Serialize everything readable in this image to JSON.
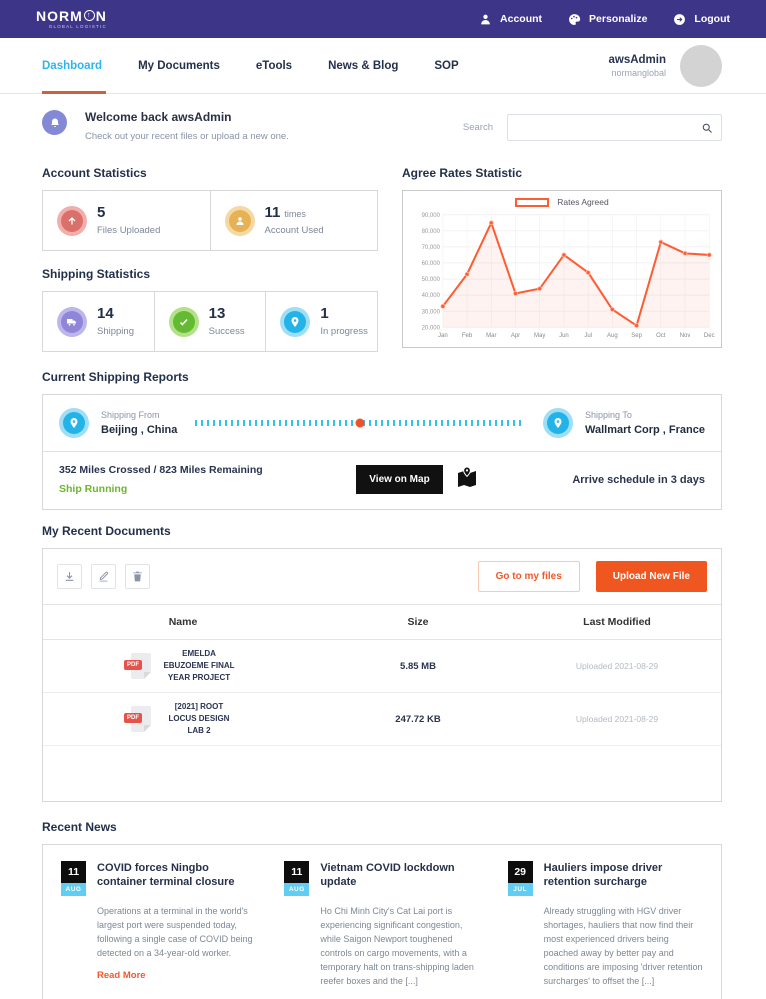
{
  "colors": {
    "navbar": "#3d3588",
    "accent_orange": "#f0592b",
    "active_tab_cyan": "#2eb5ef",
    "status_green": "#6cb52d",
    "chart_line": "#ff5c33"
  },
  "navbar": {
    "logo_part1": "NORM",
    "logo_part2": "N",
    "logo_a_glyph": "↑",
    "logo_subtitle": "GLOBAL LOGISTIC",
    "items": [
      {
        "label": "Account"
      },
      {
        "label": "Personalize"
      },
      {
        "label": "Logout"
      }
    ]
  },
  "tabs": [
    {
      "label": "Dashboard",
      "active": true
    },
    {
      "label": "My Documents",
      "active": false
    },
    {
      "label": "eTools",
      "active": false
    },
    {
      "label": "News & Blog",
      "active": false
    },
    {
      "label": "SOP",
      "active": false
    }
  ],
  "user": {
    "name": "awsAdmin",
    "org": "normanglobal"
  },
  "welcome": {
    "title": "Welcome back awsAdmin",
    "subtitle": "Check out your recent files or upload a new one."
  },
  "search": {
    "label": "Search",
    "value": ""
  },
  "account_stats": {
    "heading": "Account Statistics",
    "cards": [
      {
        "value": "5",
        "suffix": "",
        "label": "Files Uploaded"
      },
      {
        "value": "11",
        "suffix": "times",
        "label": "Account Used"
      }
    ]
  },
  "shipping_stats": {
    "heading": "Shipping Statistics",
    "cards": [
      {
        "value": "14",
        "label": "Shipping"
      },
      {
        "value": "13",
        "label": "Success"
      },
      {
        "value": "1",
        "label": "In progress"
      }
    ]
  },
  "chart": {
    "heading": "Agree Rates Statistic"
  },
  "chart_data": {
    "type": "line",
    "title": "Agree Rates Statistic",
    "x": [
      "Jan",
      "Feb",
      "Mar",
      "Apr",
      "May",
      "Jun",
      "Jul",
      "Aug",
      "Sep",
      "Oct",
      "Nov",
      "Dec"
    ],
    "series": [
      {
        "name": "Rates Agreed",
        "values": [
          33000,
          53000,
          85000,
          41000,
          44000,
          65000,
          54000,
          31000,
          21000,
          73000,
          66000,
          65000
        ]
      }
    ],
    "ylim": [
      20000,
      90000
    ],
    "ytick_step": 10000,
    "grid": true,
    "legend_position": "top",
    "line_color": "#ff5c33"
  },
  "shipping_report": {
    "heading": "Current Shipping Reports",
    "from_label": "Shipping From",
    "from_value": "Beijing , China",
    "to_label": "Shipping To",
    "to_value": "Wallmart Corp , France",
    "progress": "352 Miles Crossed / 823 Miles Remaining",
    "status": "Ship Running",
    "map_button": "View on Map",
    "arrival": "Arrive schedule in 3 days"
  },
  "documents": {
    "heading": "My Recent Documents",
    "buttons": {
      "go_to_files": "Go to my files",
      "upload": "Upload New File"
    },
    "columns": [
      "Name",
      "Size",
      "Last Modified"
    ],
    "rows": [
      {
        "type": "PDF",
        "name": "EMELDA EBUZOEME FINAL YEAR PROJECT",
        "size": "5.85 MB",
        "modified": "Uploaded 2021-08-29"
      },
      {
        "type": "PDF",
        "name": "[2021] ROOT LOCUS DESIGN LAB 2",
        "size": "247.72 KB",
        "modified": "Uploaded 2021-08-29"
      }
    ]
  },
  "news": {
    "heading": "Recent News",
    "read_more": "Read More",
    "items": [
      {
        "day": "11",
        "month": "AUG",
        "title": "COVID forces Ningbo container terminal closure",
        "body": "Operations at a terminal in the world's largest port were suspended today, following a single case of COVID being detected on a 34-year-old worker."
      },
      {
        "day": "11",
        "month": "AUG",
        "title": "Vietnam COVID lockdown update",
        "body": "Ho Chi Minh City's Cat Lai port is experiencing significant congestion, while Saigon Newport toughened controls on cargo movements, with a temporary halt on trans-shipping laden reefer boxes and the [...]"
      },
      {
        "day": "29",
        "month": "JUL",
        "title": "Hauliers impose driver retention surcharge",
        "body": "Already struggling with HGV driver shortages, hauliers that now find their most experienced drivers being poached away by better pay and conditions are imposing 'driver retention surcharges' to offset the [...]"
      }
    ]
  }
}
